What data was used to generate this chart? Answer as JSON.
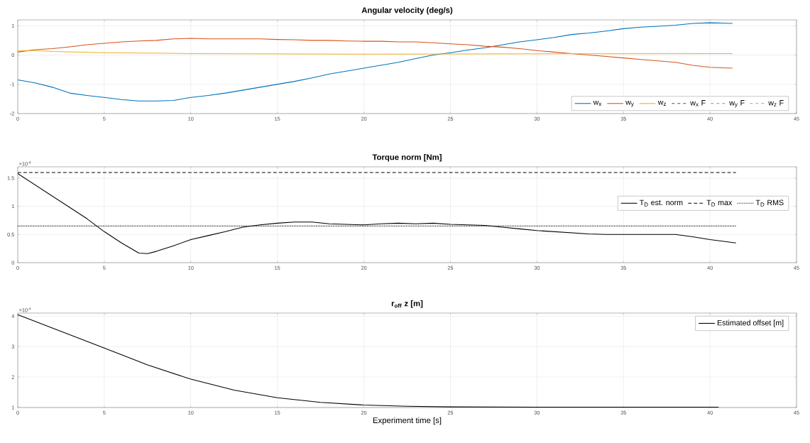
{
  "chart_data": [
    {
      "type": "line",
      "title": "Angular velocity (deg/s)",
      "xlim": [
        0,
        45
      ],
      "ylim": [
        -2,
        1.2
      ],
      "xticks": [
        0,
        5,
        10,
        15,
        20,
        25,
        30,
        35,
        40,
        45
      ],
      "yticks": [
        -2,
        -1,
        0,
        1
      ],
      "grid": true,
      "legend": "bottom right",
      "series": [
        {
          "name": "w$_{x}$",
          "color": "#0072bd",
          "line_style": "solid",
          "x": [
            0,
            1,
            2,
            3,
            4,
            5,
            6,
            7,
            8,
            9,
            10,
            11,
            12,
            13,
            14,
            15,
            16,
            17,
            18,
            19,
            20,
            21,
            22,
            23,
            24,
            25,
            26,
            27,
            28,
            29,
            30,
            31,
            32,
            33,
            34,
            35,
            36,
            37,
            38,
            39,
            40,
            41.3
          ],
          "values": [
            -0.85,
            -0.95,
            -1.1,
            -1.3,
            -1.38,
            -1.45,
            -1.52,
            -1.57,
            -1.57,
            -1.55,
            -1.45,
            -1.38,
            -1.3,
            -1.2,
            -1.1,
            -1.0,
            -0.9,
            -0.78,
            -0.65,
            -0.55,
            -0.45,
            -0.35,
            -0.25,
            -0.12,
            0.0,
            0.08,
            0.17,
            0.25,
            0.35,
            0.45,
            0.52,
            0.6,
            0.7,
            0.75,
            0.82,
            0.9,
            0.95,
            0.98,
            1.02,
            1.08,
            1.1,
            1.08
          ]
        },
        {
          "name": "w$_{y}$",
          "color": "#d95319",
          "line_style": "solid",
          "x": [
            0,
            1,
            2,
            3,
            4,
            5,
            6,
            7,
            8,
            9,
            10,
            11,
            12,
            13,
            14,
            15,
            16,
            17,
            18,
            19,
            20,
            21,
            22,
            23,
            24,
            25,
            26,
            27,
            28,
            29,
            30,
            31,
            32,
            33,
            34,
            35,
            36,
            37,
            38,
            39,
            40,
            41.3
          ],
          "values": [
            0.1,
            0.18,
            0.22,
            0.28,
            0.35,
            0.4,
            0.45,
            0.48,
            0.5,
            0.55,
            0.57,
            0.55,
            0.55,
            0.55,
            0.55,
            0.53,
            0.52,
            0.5,
            0.5,
            0.48,
            0.47,
            0.47,
            0.45,
            0.45,
            0.42,
            0.38,
            0.35,
            0.3,
            0.27,
            0.22,
            0.15,
            0.1,
            0.05,
            0.0,
            -0.05,
            -0.1,
            -0.15,
            -0.2,
            -0.25,
            -0.35,
            -0.42,
            -0.45
          ]
        },
        {
          "name": "w$_{z}$",
          "color": "#edb120",
          "line_style": "solid",
          "x": [
            0,
            1,
            2,
            5,
            10,
            20,
            30,
            41.3
          ],
          "values": [
            0.15,
            0.15,
            0.12,
            0.08,
            0.05,
            0.03,
            0.04,
            0.05
          ]
        },
        {
          "name": "w$_{x}$ F",
          "color": "#7e2f8e",
          "line_style": "dashed",
          "values": [
            null
          ]
        },
        {
          "name": "w$_{y}$ F",
          "color": "#77ac30",
          "line_style": "dashed",
          "values": [
            null
          ]
        },
        {
          "name": "w$_{z}$ F",
          "color": "#4dbeee",
          "line_style": "dashed",
          "values": [
            null
          ]
        }
      ]
    },
    {
      "type": "line",
      "title": "Torque norm [Nm]",
      "xlim": [
        0,
        45
      ],
      "ylim": [
        0,
        1.7
      ],
      "xticks": [
        0,
        5,
        10,
        15,
        20,
        25,
        30,
        35,
        40,
        45
      ],
      "yticks": [
        0,
        0.5,
        1,
        1.5
      ],
      "grid": true,
      "legend": "right",
      "annotations": [
        "×10$^{-4}$"
      ],
      "series": [
        {
          "name": "T$_{D}$ est. norm",
          "color": "#000000",
          "line_style": "solid",
          "x": [
            0,
            1,
            2,
            3,
            4,
            5,
            6,
            7,
            7.5,
            8,
            9,
            10,
            11,
            12,
            13,
            14,
            15,
            16,
            17,
            18,
            19,
            20,
            21,
            22,
            23,
            24,
            25,
            26,
            27,
            28,
            29,
            30,
            31,
            32,
            33,
            34,
            35,
            36,
            37,
            38,
            39,
            40,
            41.5
          ],
          "values": [
            1.58,
            1.38,
            1.18,
            0.98,
            0.78,
            0.55,
            0.35,
            0.17,
            0.16,
            0.2,
            0.3,
            0.41,
            0.48,
            0.55,
            0.63,
            0.67,
            0.7,
            0.72,
            0.72,
            0.69,
            0.68,
            0.67,
            0.69,
            0.7,
            0.69,
            0.7,
            0.68,
            0.67,
            0.66,
            0.63,
            0.6,
            0.57,
            0.55,
            0.53,
            0.51,
            0.5,
            0.5,
            0.5,
            0.5,
            0.5,
            0.46,
            0.41,
            0.35
          ]
        },
        {
          "name": "T$_{D}$ max",
          "color": "#000000",
          "line_style": "dashed",
          "x": [
            0,
            41.5
          ],
          "values": [
            1.6,
            1.6
          ]
        },
        {
          "name": "T$_{D}$ RMS",
          "color": "#000000",
          "line_style": "dotted",
          "x": [
            0,
            41.5
          ],
          "values": [
            0.65,
            0.65
          ]
        }
      ]
    },
    {
      "type": "line",
      "title": "r$_{off}$ z [m]",
      "xlabel": "Experiment time [s]",
      "xlim": [
        0,
        45
      ],
      "ylim": [
        1,
        4.1
      ],
      "xticks": [
        0,
        5,
        10,
        15,
        20,
        25,
        30,
        35,
        40,
        45
      ],
      "yticks": [
        1,
        2,
        3,
        4
      ],
      "grid": true,
      "legend": "top right",
      "annotations": [
        "×10$^{-4}$"
      ],
      "series": [
        {
          "name": "Estimated offset [m]",
          "color": "#000000",
          "line_style": "solid",
          "x": [
            0,
            2.5,
            5,
            7.5,
            10,
            12.5,
            15,
            17.5,
            20,
            22.5,
            25,
            30,
            35,
            40.5
          ],
          "values": [
            4.05,
            3.5,
            2.95,
            2.4,
            1.93,
            1.57,
            1.32,
            1.17,
            1.08,
            1.04,
            1.02,
            1.01,
            1.01,
            1.01
          ]
        }
      ]
    }
  ]
}
